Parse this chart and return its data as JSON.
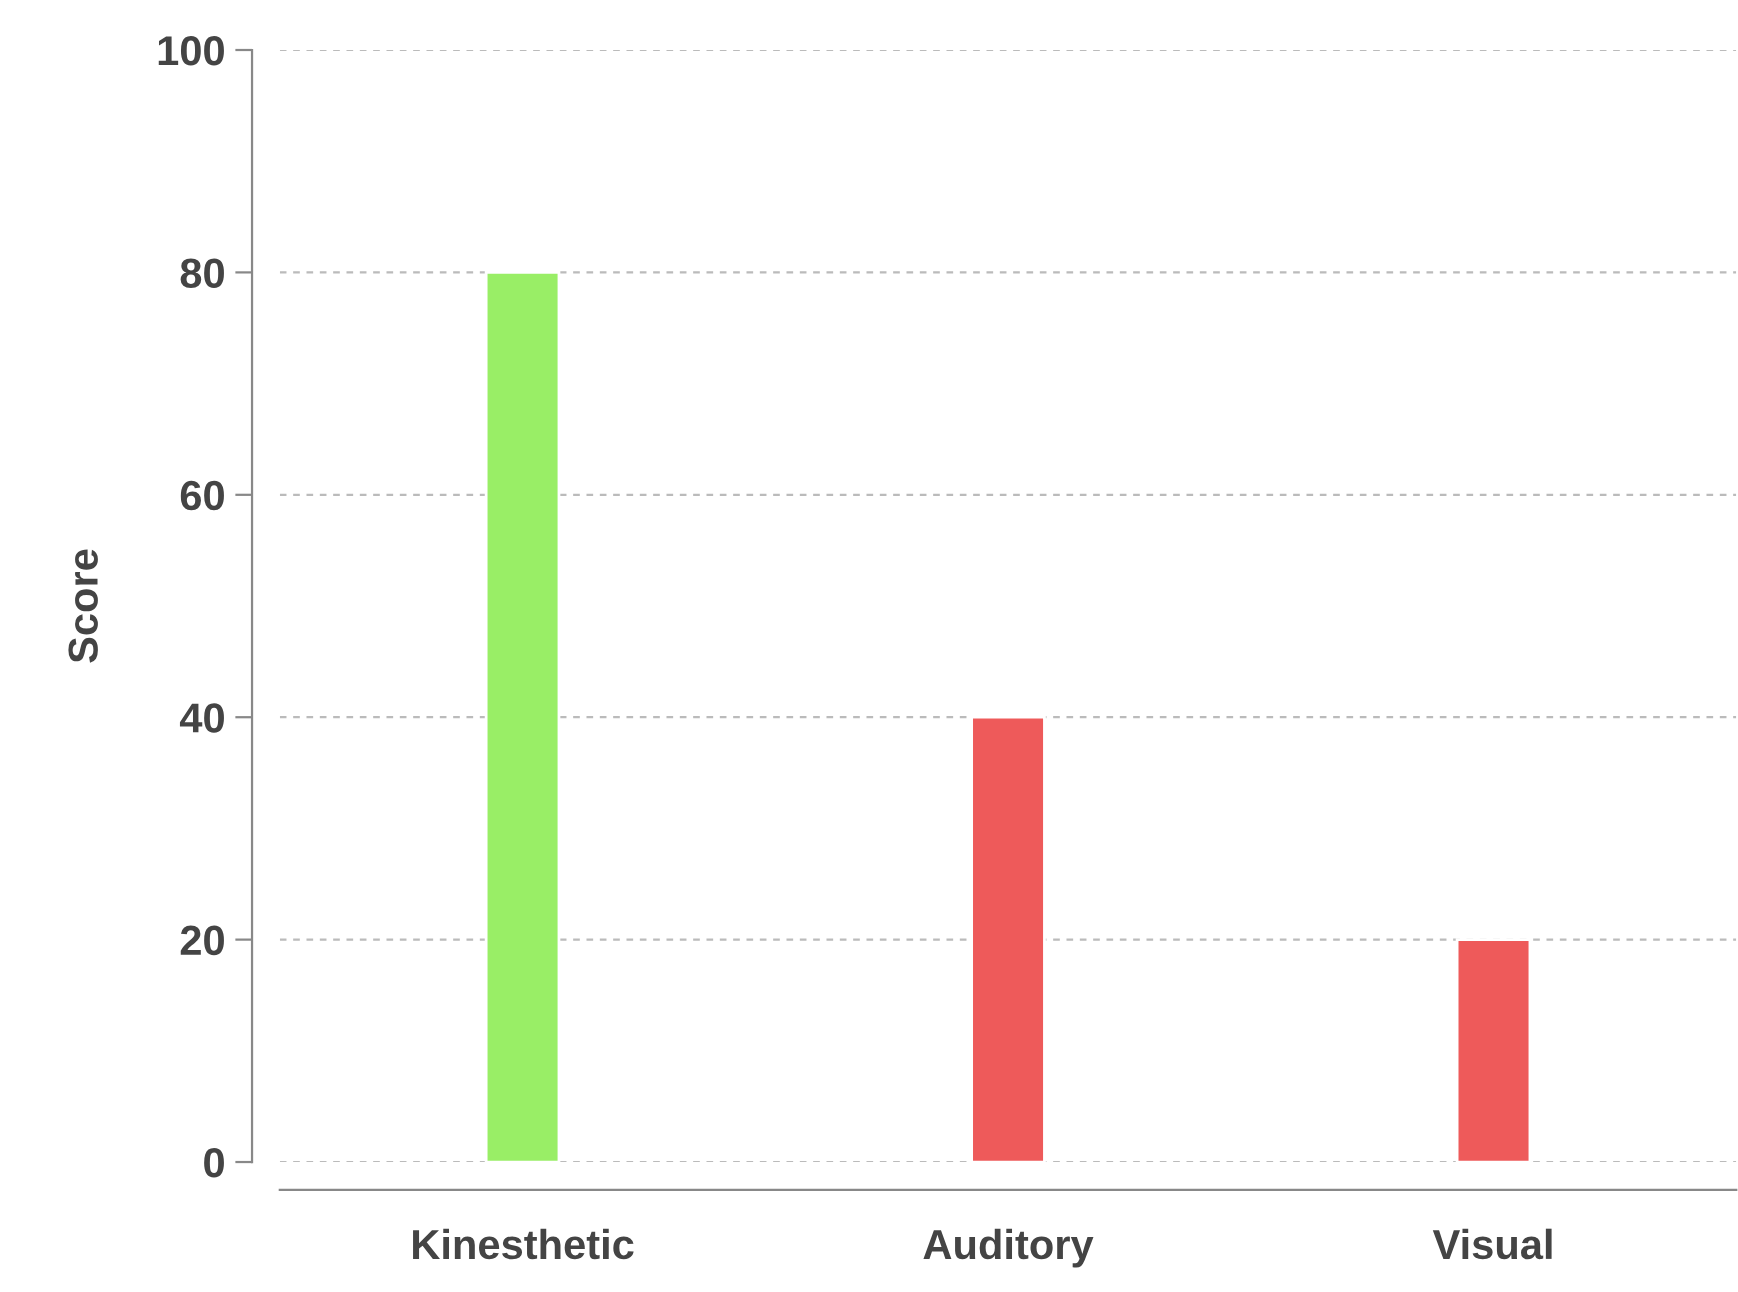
{
  "chart_data": {
    "type": "bar",
    "ylabel": "Score",
    "categories": [
      "Kinesthetic",
      "Auditory",
      "Visual"
    ],
    "values": [
      80,
      40,
      20
    ],
    "colors": [
      "#99ee66",
      "#ee5a5a",
      "#ee5a5a"
    ],
    "ylim": [
      0,
      100
    ],
    "yticks": [
      0,
      20,
      40,
      60,
      80,
      100
    ],
    "grid": "y"
  }
}
